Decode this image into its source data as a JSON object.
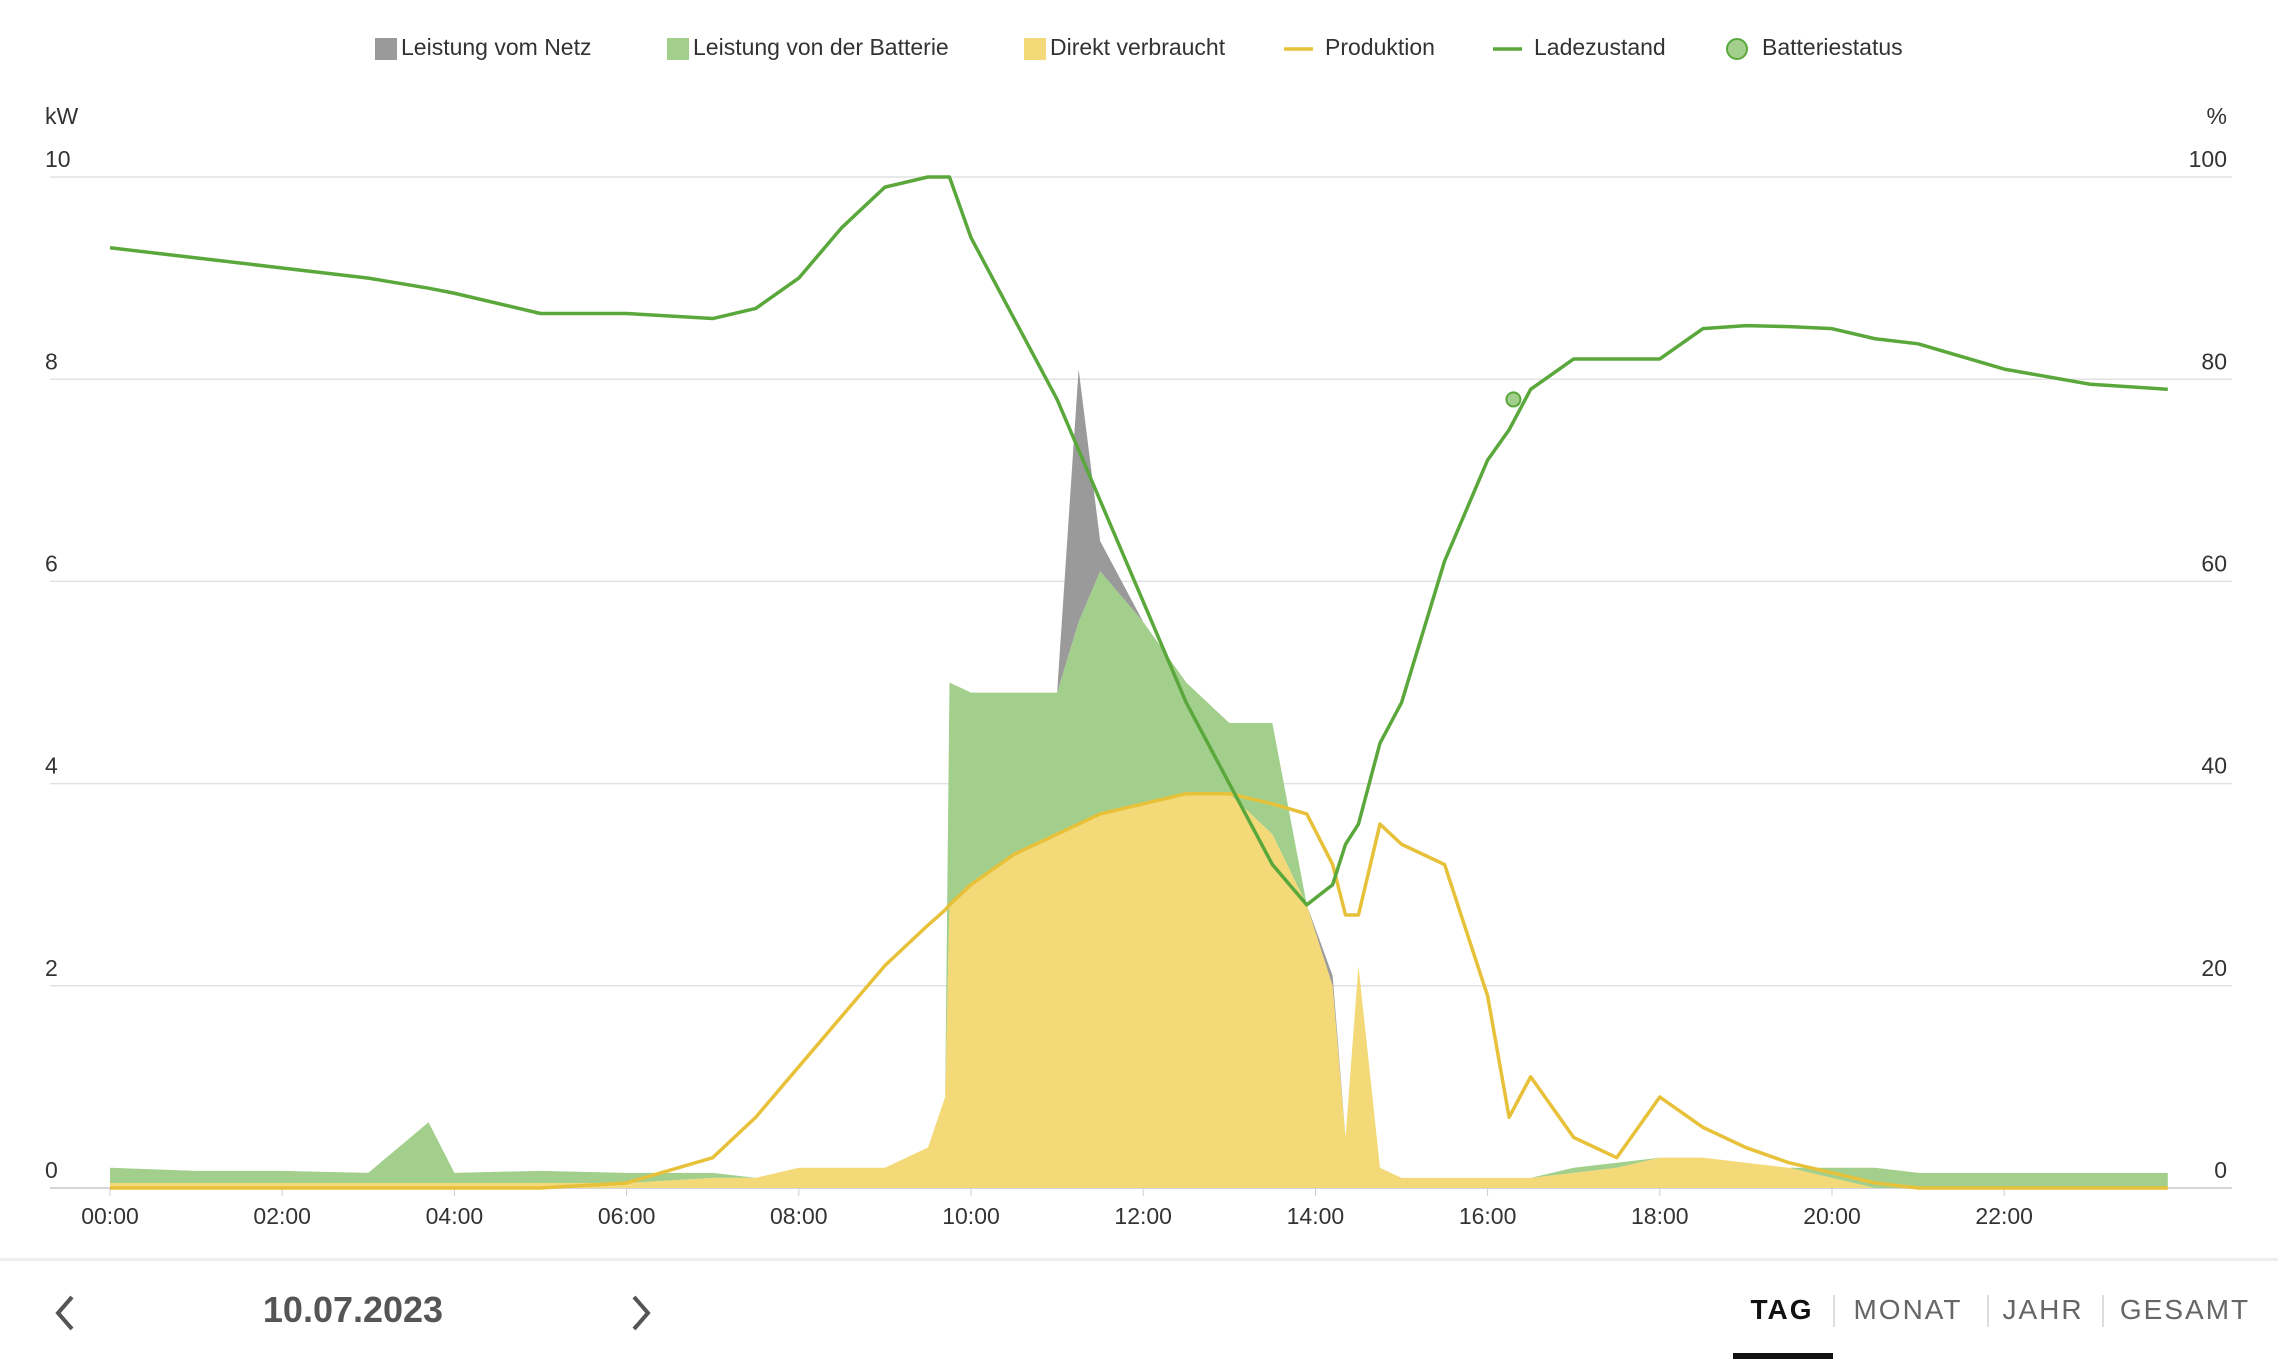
{
  "chart_data": {
    "type": "area",
    "y_label": "kW",
    "y2_label": "%",
    "x": [
      0,
      1,
      2,
      3,
      3.7,
      4,
      5,
      6,
      7,
      7.5,
      8,
      8.5,
      9,
      9.5,
      9.7,
      9.75,
      10,
      10.5,
      11,
      11.25,
      11.5,
      12,
      12.5,
      13,
      13.5,
      13.9,
      14.2,
      14.35,
      14.5,
      14.75,
      15,
      15.5,
      16,
      16.25,
      16.5,
      17,
      17.5,
      18,
      18.5,
      19,
      19.5,
      20,
      20.5,
      21,
      22,
      23,
      23.9
    ],
    "xlim": [
      0,
      24
    ],
    "xticks": [
      {
        "value": 0,
        "label": "00:00"
      },
      {
        "value": 2,
        "label": "02:00"
      },
      {
        "value": 4,
        "label": "04:00"
      },
      {
        "value": 6,
        "label": "06:00"
      },
      {
        "value": 8,
        "label": "08:00"
      },
      {
        "value": 10,
        "label": "10:00"
      },
      {
        "value": 12,
        "label": "12:00"
      },
      {
        "value": 14,
        "label": "14:00"
      },
      {
        "value": 16,
        "label": "16:00"
      },
      {
        "value": 18,
        "label": "18:00"
      },
      {
        "value": 20,
        "label": "20:00"
      },
      {
        "value": 22,
        "label": "22:00"
      }
    ],
    "ylim": [
      0,
      10
    ],
    "yticks": [
      0,
      2,
      4,
      6,
      8,
      10
    ],
    "y2lim": [
      0,
      100
    ],
    "y2ticks": [
      0,
      20,
      40,
      60,
      80,
      100
    ],
    "grid": true,
    "stacked": true,
    "series": [
      {
        "name": "Leistung vom Netz",
        "type": "area",
        "color": "#9a9a9a",
        "values": [
          0,
          0,
          0,
          0,
          0,
          0,
          0,
          0,
          0,
          0,
          0,
          0,
          0,
          0,
          0,
          0,
          0,
          0,
          0,
          2.5,
          0.3,
          0,
          0,
          0,
          0,
          0,
          0.1,
          0,
          0,
          0,
          0,
          0,
          0,
          0,
          0,
          0,
          0,
          0,
          0,
          0,
          0,
          0,
          0,
          0,
          0,
          0,
          0
        ]
      },
      {
        "name": "Leistung von der Batterie",
        "type": "area",
        "color": "#a2cf8c",
        "values": [
          0.15,
          0.12,
          0.12,
          0.1,
          0.6,
          0.1,
          0.12,
          0.1,
          0.05,
          0,
          0,
          0,
          0,
          0,
          0,
          2.2,
          1.9,
          1.6,
          1.4,
          2.0,
          2.4,
          1.8,
          1.1,
          0.7,
          1.1,
          0,
          0,
          0,
          0,
          0,
          0,
          0,
          0,
          0,
          0,
          0.05,
          0.05,
          0,
          0,
          0,
          0,
          0.1,
          0.2,
          0.15,
          0.15,
          0.15,
          0.15
        ]
      },
      {
        "name": "Direkt verbraucht",
        "type": "area",
        "color": "#f3d978",
        "values": [
          0.05,
          0.05,
          0.05,
          0.05,
          0.05,
          0.05,
          0.05,
          0.05,
          0.1,
          0.1,
          0.2,
          0.2,
          0.2,
          0.4,
          0.9,
          2.8,
          3.0,
          3.3,
          3.5,
          3.6,
          3.7,
          3.8,
          3.9,
          3.9,
          3.5,
          2.8,
          2.0,
          0.5,
          2.2,
          0.2,
          0.1,
          0.1,
          0.1,
          0.1,
          0.1,
          0.15,
          0.2,
          0.3,
          0.3,
          0.25,
          0.2,
          0.1,
          0,
          0,
          0,
          0,
          0
        ]
      },
      {
        "name": "Produktion",
        "type": "line",
        "color": "#e8c13a",
        "values": [
          0,
          0,
          0,
          0,
          0,
          0,
          0,
          0.05,
          0.3,
          0.7,
          1.2,
          1.7,
          2.2,
          2.6,
          2.75,
          2.8,
          3.0,
          3.3,
          3.5,
          3.6,
          3.7,
          3.8,
          3.9,
          3.9,
          3.8,
          3.7,
          3.2,
          2.7,
          2.7,
          3.6,
          3.4,
          3.2,
          1.9,
          0.7,
          1.1,
          0.5,
          0.3,
          0.9,
          0.6,
          0.4,
          0.25,
          0.15,
          0.05,
          0,
          0,
          0,
          0
        ]
      },
      {
        "name": "Ladezustand",
        "type": "line",
        "axis": "y2",
        "color": "#5aa83c",
        "values": [
          93,
          92,
          91,
          90,
          89,
          88.5,
          86.5,
          86.5,
          86,
          87,
          90,
          95,
          99,
          100,
          100,
          100,
          94,
          86,
          78,
          73,
          68,
          58,
          48,
          40,
          32,
          28,
          30,
          34,
          36,
          44,
          48,
          62,
          72,
          75,
          79,
          82,
          82,
          82,
          85,
          85.3,
          85.2,
          85,
          84,
          83.5,
          81,
          79.5,
          79
        ]
      },
      {
        "name": "Batteriestatus",
        "type": "scatter",
        "axis": "y2",
        "color": "#a2cf8c",
        "x": [
          16.3
        ],
        "values": [
          78
        ]
      }
    ]
  },
  "navigation": {
    "date": "10.07.2023",
    "tabs": [
      "TAG",
      "MONAT",
      "JAHR",
      "GESAMT"
    ]
  }
}
